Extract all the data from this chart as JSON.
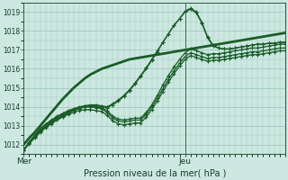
{
  "xlabel": "Pression niveau de la mer( hPa )",
  "ylim": [
    1011.5,
    1019.5
  ],
  "xlim": [
    0,
    47
  ],
  "yticks": [
    1012,
    1013,
    1014,
    1015,
    1016,
    1017,
    1018,
    1019
  ],
  "xtick_labels": [
    "Mer",
    "Jeu"
  ],
  "xtick_positions": [
    0,
    29
  ],
  "vline_x": 29,
  "bg_color": "#cce8e0",
  "grid_color": "#a0c8c0",
  "line_color_thin": "#1a5c28",
  "line_color_thick": "#1a5c28",
  "series": [
    {
      "y": [
        1011.7,
        1012.1,
        1012.4,
        1012.7,
        1012.95,
        1013.15,
        1013.35,
        1013.5,
        1013.65,
        1013.8,
        1013.9,
        1014.0,
        1014.05,
        1014.05,
        1014.0,
        1013.95,
        1014.1,
        1014.3,
        1014.55,
        1014.85,
        1015.2,
        1015.6,
        1016.0,
        1016.45,
        1016.9,
        1017.4,
        1017.85,
        1018.3,
        1018.65,
        1019.0,
        1019.15,
        1018.95,
        1018.4,
        1017.65,
        1017.2,
        1017.1,
        1017.05,
        1017.05,
        1017.1,
        1017.15,
        1017.2,
        1017.25,
        1017.3,
        1017.3,
        1017.35,
        1017.35,
        1017.4,
        1017.4
      ],
      "lw": 0.9,
      "marker": true
    },
    {
      "y": [
        1011.7,
        1012.1,
        1012.4,
        1012.75,
        1013.0,
        1013.2,
        1013.4,
        1013.55,
        1013.7,
        1013.85,
        1013.95,
        1014.05,
        1014.1,
        1014.1,
        1014.05,
        1014.0,
        1014.15,
        1014.35,
        1014.6,
        1014.9,
        1015.25,
        1015.65,
        1016.05,
        1016.5,
        1016.95,
        1017.4,
        1017.85,
        1018.3,
        1018.65,
        1019.05,
        1019.2,
        1019.0,
        1018.45,
        1017.7,
        1017.25,
        1017.1,
        1017.05,
        1017.05,
        1017.1,
        1017.15,
        1017.2,
        1017.25,
        1017.3,
        1017.3,
        1017.35,
        1017.35,
        1017.4,
        1017.4
      ],
      "lw": 0.9,
      "marker": true
    },
    {
      "y": [
        1011.7,
        1012.15,
        1012.5,
        1012.85,
        1013.1,
        1013.3,
        1013.5,
        1013.65,
        1013.8,
        1013.9,
        1014.0,
        1014.05,
        1014.05,
        1014.0,
        1013.95,
        1013.8,
        1013.5,
        1013.35,
        1013.3,
        1013.35,
        1013.4,
        1013.4,
        1013.7,
        1014.1,
        1014.6,
        1015.15,
        1015.65,
        1016.1,
        1016.5,
        1016.85,
        1017.05,
        1016.95,
        1016.85,
        1016.75,
        1016.8,
        1016.8,
        1016.85,
        1016.9,
        1016.95,
        1017.0,
        1017.05,
        1017.1,
        1017.1,
        1017.15,
        1017.2,
        1017.25,
        1017.3,
        1017.3
      ],
      "lw": 0.9,
      "marker": true
    },
    {
      "y": [
        1011.7,
        1012.1,
        1012.45,
        1012.8,
        1013.05,
        1013.25,
        1013.45,
        1013.6,
        1013.75,
        1013.85,
        1013.95,
        1014.0,
        1014.0,
        1013.95,
        1013.9,
        1013.7,
        1013.4,
        1013.25,
        1013.2,
        1013.25,
        1013.3,
        1013.3,
        1013.6,
        1014.0,
        1014.45,
        1014.95,
        1015.45,
        1015.9,
        1016.3,
        1016.65,
        1016.85,
        1016.75,
        1016.65,
        1016.55,
        1016.6,
        1016.6,
        1016.65,
        1016.7,
        1016.75,
        1016.8,
        1016.85,
        1016.9,
        1016.9,
        1016.95,
        1017.0,
        1017.05,
        1017.1,
        1017.1
      ],
      "lw": 0.9,
      "marker": true
    },
    {
      "y": [
        1011.7,
        1012.05,
        1012.35,
        1012.65,
        1012.9,
        1013.1,
        1013.3,
        1013.45,
        1013.6,
        1013.7,
        1013.8,
        1013.85,
        1013.85,
        1013.8,
        1013.75,
        1013.55,
        1013.25,
        1013.1,
        1013.05,
        1013.1,
        1013.15,
        1013.15,
        1013.45,
        1013.85,
        1014.3,
        1014.8,
        1015.3,
        1015.75,
        1016.15,
        1016.5,
        1016.7,
        1016.6,
        1016.5,
        1016.4,
        1016.45,
        1016.45,
        1016.5,
        1016.55,
        1016.6,
        1016.65,
        1016.7,
        1016.75,
        1016.75,
        1016.8,
        1016.85,
        1016.9,
        1016.95,
        1016.95
      ],
      "lw": 0.9,
      "marker": true
    },
    {
      "y": [
        1012.0,
        1012.35,
        1012.65,
        1013.0,
        1013.35,
        1013.7,
        1014.05,
        1014.4,
        1014.7,
        1015.0,
        1015.25,
        1015.5,
        1015.7,
        1015.85,
        1016.0,
        1016.1,
        1016.2,
        1016.3,
        1016.4,
        1016.5,
        1016.55,
        1016.6,
        1016.65,
        1016.7,
        1016.75,
        1016.8,
        1016.85,
        1016.9,
        1016.95,
        1017.0,
        1017.05,
        1017.1,
        1017.15,
        1017.2,
        1017.25,
        1017.3,
        1017.35,
        1017.4,
        1017.45,
        1017.5,
        1017.55,
        1017.6,
        1017.65,
        1017.7,
        1017.75,
        1017.8,
        1017.85,
        1017.9
      ],
      "lw": 2.0,
      "marker": false
    }
  ]
}
